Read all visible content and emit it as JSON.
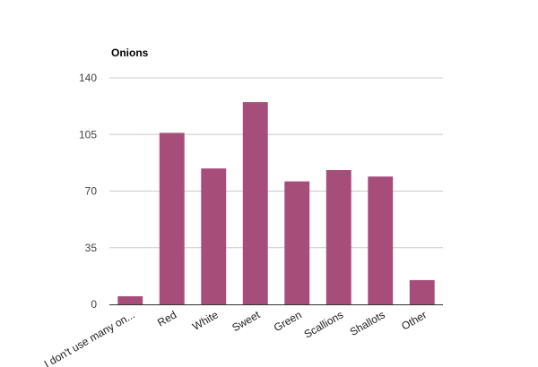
{
  "chart_data": {
    "type": "bar",
    "title": "Onions",
    "xlabel": "",
    "ylabel": "",
    "categories": [
      "I don't use many on...",
      "Red",
      "White",
      "Sweet",
      "Green",
      "Scallions",
      "Shallots",
      "Other"
    ],
    "values": [
      5,
      106,
      84,
      125,
      76,
      83,
      79,
      15
    ],
    "ylim": [
      0,
      140
    ],
    "yticks": [
      0,
      35,
      70,
      105,
      140
    ],
    "grid": true,
    "legend": "none",
    "bar_color": "#a64d79",
    "gridline_color": "#cccccc"
  }
}
